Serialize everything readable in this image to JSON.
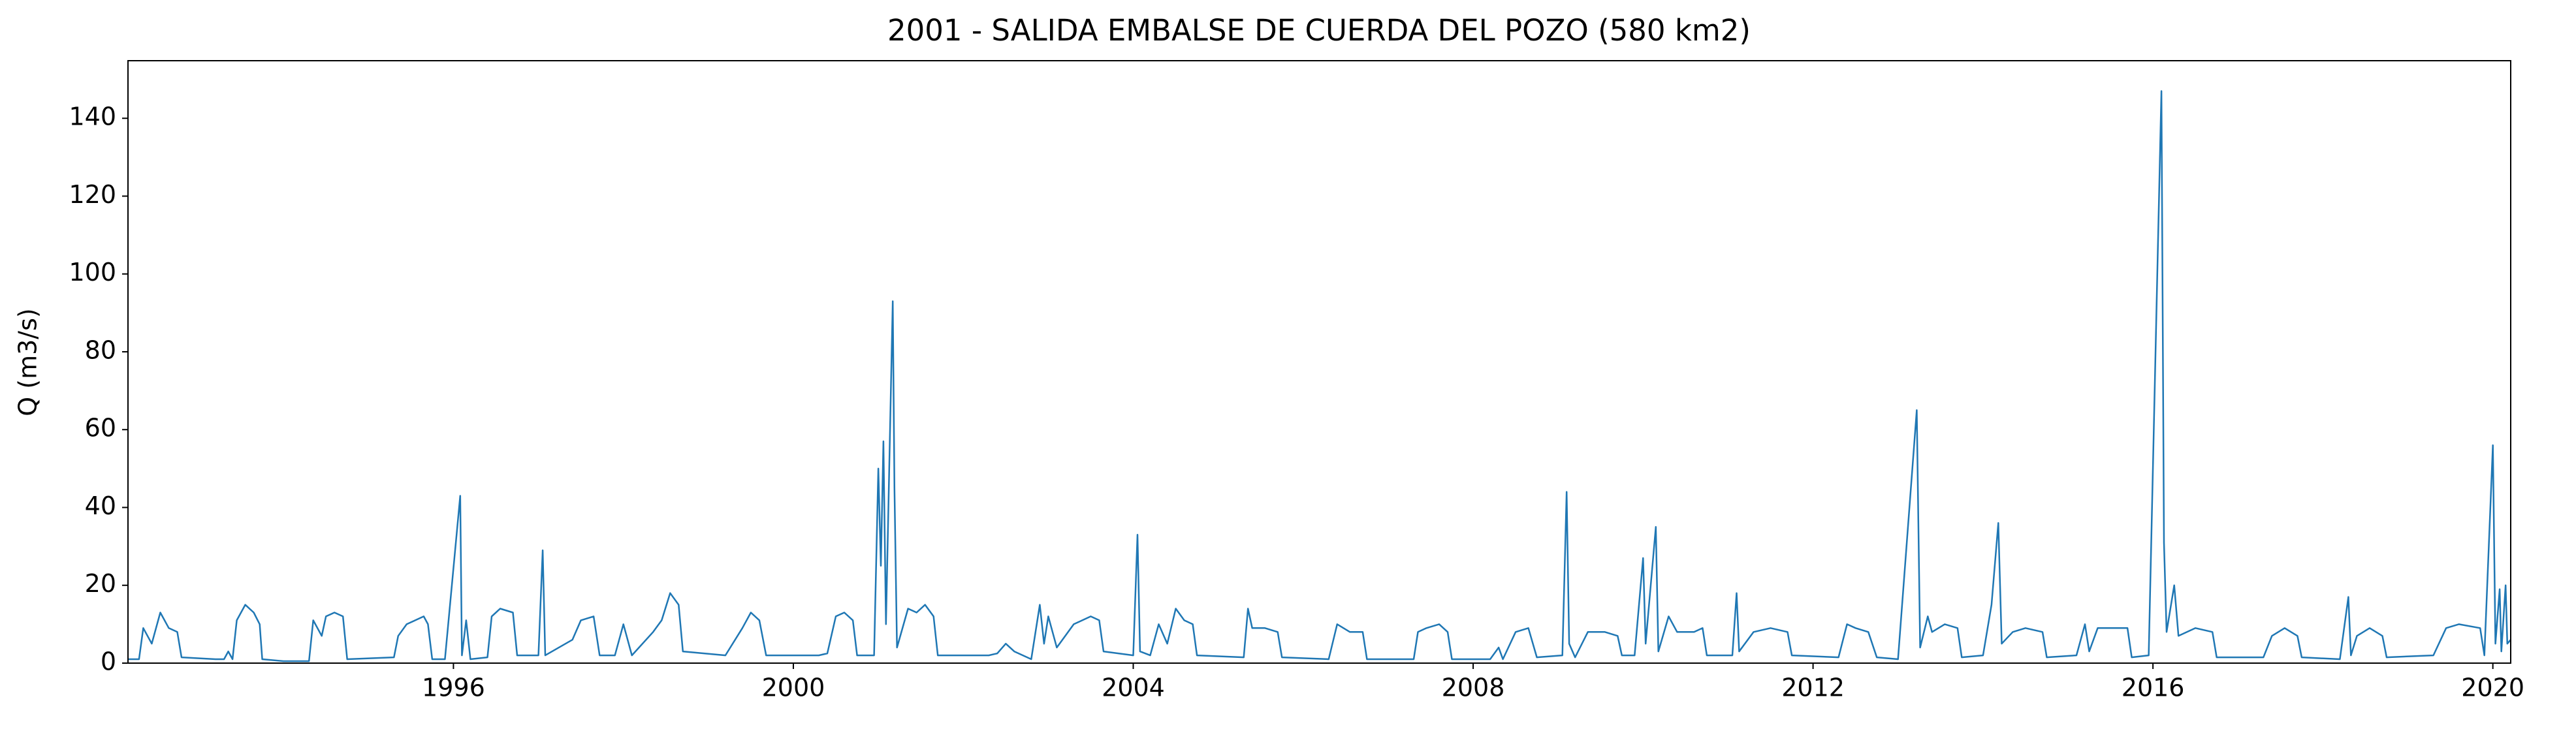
{
  "chart_data": {
    "type": "line",
    "title": "2001 - SALIDA EMBALSE DE CUERDA DEL POZO (580 km2)",
    "y_label": "Q (m3/s)",
    "color": "#1f77b4",
    "xlim": [
      1992.17,
      2020.21
    ],
    "xticks": [
      1996,
      2000,
      2004,
      2008,
      2012,
      2016,
      2020
    ],
    "ylim": [
      0,
      154.8
    ],
    "yticks": [
      0,
      20,
      40,
      60,
      80,
      100,
      120,
      140
    ],
    "grid": false,
    "x": [
      1992.17,
      1992.3,
      1992.35,
      1992.45,
      1992.55,
      1992.65,
      1992.75,
      1992.8,
      1993.2,
      1993.3,
      1993.35,
      1993.4,
      1993.45,
      1993.55,
      1993.65,
      1993.72,
      1993.75,
      1994.0,
      1994.3,
      1994.35,
      1994.45,
      1994.5,
      1994.6,
      1994.7,
      1994.75,
      1995.3,
      1995.35,
      1995.45,
      1995.55,
      1995.65,
      1995.7,
      1995.75,
      1995.9,
      1996.08,
      1996.1,
      1996.15,
      1996.2,
      1996.4,
      1996.45,
      1996.55,
      1996.7,
      1996.75,
      1997.0,
      1997.05,
      1997.08,
      1997.4,
      1997.5,
      1997.65,
      1997.72,
      1997.9,
      1998.0,
      1998.1,
      1998.35,
      1998.45,
      1998.55,
      1998.65,
      1998.7,
      1999.2,
      1999.4,
      1999.5,
      1999.6,
      1999.68,
      2000.3,
      2000.4,
      2000.5,
      2000.6,
      2000.7,
      2000.75,
      2000.95,
      2001.0,
      2001.03,
      2001.06,
      2001.09,
      2001.17,
      2001.19,
      2001.22,
      2001.35,
      2001.45,
      2001.55,
      2001.65,
      2001.7,
      2002.3,
      2002.4,
      2002.5,
      2002.6,
      2002.8,
      2002.9,
      2002.95,
      2003.0,
      2003.1,
      2003.3,
      2003.5,
      2003.6,
      2003.65,
      2004.0,
      2004.05,
      2004.08,
      2004.2,
      2004.3,
      2004.4,
      2004.5,
      2004.6,
      2004.7,
      2004.75,
      2005.3,
      2005.35,
      2005.4,
      2005.55,
      2005.7,
      2005.75,
      2006.3,
      2006.4,
      2006.55,
      2006.7,
      2006.75,
      2007.3,
      2007.35,
      2007.45,
      2007.6,
      2007.7,
      2007.75,
      2008.2,
      2008.3,
      2008.35,
      2008.5,
      2008.65,
      2008.75,
      2009.05,
      2009.1,
      2009.13,
      2009.2,
      2009.35,
      2009.55,
      2009.7,
      2009.75,
      2009.9,
      2010.0,
      2010.03,
      2010.15,
      2010.18,
      2010.3,
      2010.4,
      2010.6,
      2010.7,
      2010.75,
      2011.05,
      2011.1,
      2011.13,
      2011.3,
      2011.5,
      2011.7,
      2011.75,
      2012.3,
      2012.4,
      2012.5,
      2012.65,
      2012.75,
      2013.0,
      2013.22,
      2013.26,
      2013.35,
      2013.4,
      2013.55,
      2013.7,
      2013.75,
      2014.0,
      2014.1,
      2014.18,
      2014.22,
      2014.35,
      2014.5,
      2014.7,
      2014.75,
      2015.1,
      2015.2,
      2015.25,
      2015.35,
      2015.5,
      2015.7,
      2015.75,
      2015.95,
      2016.1,
      2016.13,
      2016.16,
      2016.25,
      2016.3,
      2016.5,
      2016.7,
      2016.75,
      2017.3,
      2017.4,
      2017.55,
      2017.7,
      2017.75,
      2018.2,
      2018.3,
      2018.33,
      2018.4,
      2018.55,
      2018.7,
      2018.75,
      2019.3,
      2019.45,
      2019.6,
      2019.85,
      2019.9,
      2020.0,
      2020.03,
      2020.08,
      2020.1,
      2020.15,
      2020.17,
      2020.21
    ],
    "values": [
      1,
      1,
      9,
      5,
      13,
      9,
      8,
      1.5,
      1,
      1,
      3,
      1,
      11,
      15,
      13,
      10,
      1,
      0.5,
      0.5,
      11,
      7,
      12,
      13,
      12,
      1,
      1.5,
      7,
      10,
      11,
      12,
      10,
      1,
      1,
      43,
      2,
      11,
      1,
      1.5,
      12,
      14,
      13,
      2,
      2,
      29,
      2,
      6,
      11,
      12,
      2,
      2,
      10,
      2,
      8,
      11,
      18,
      15,
      3,
      2,
      9,
      13,
      11,
      2,
      2,
      2.5,
      12,
      13,
      11,
      2,
      2,
      50,
      25,
      57,
      10,
      93,
      45,
      4,
      14,
      13,
      15,
      12,
      2,
      2,
      2.5,
      5,
      3,
      1,
      15,
      5,
      12,
      4,
      10,
      12,
      11,
      3,
      2,
      33,
      3,
      2,
      10,
      5,
      14,
      11,
      10,
      2,
      1.5,
      14,
      9,
      9,
      8,
      1.5,
      1,
      10,
      8,
      8,
      1,
      1,
      8,
      9,
      10,
      8,
      1,
      1,
      4,
      1,
      8,
      9,
      1.5,
      2,
      44,
      5,
      1.5,
      8,
      8,
      7,
      2,
      2,
      27,
      5,
      35,
      3,
      12,
      8,
      8,
      9,
      2,
      2,
      18,
      3,
      8,
      9,
      8,
      2,
      1.5,
      10,
      9,
      8,
      1.5,
      1,
      65,
      4,
      12,
      8,
      10,
      9,
      1.5,
      2,
      15,
      36,
      5,
      8,
      9,
      8,
      1.5,
      2,
      10,
      3,
      9,
      9,
      9,
      1.5,
      2,
      147,
      31,
      8,
      20,
      7,
      9,
      8,
      1.5,
      1.5,
      7,
      9,
      7,
      1.5,
      1,
      17,
      2,
      7,
      9,
      7,
      1.5,
      2,
      9,
      10,
      9,
      2,
      56,
      5,
      19,
      3,
      20,
      5,
      6
    ]
  }
}
